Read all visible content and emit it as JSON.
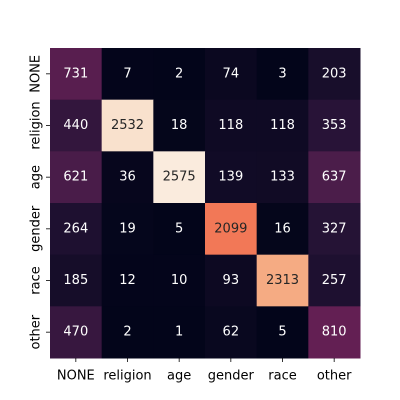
{
  "chart_data": {
    "type": "heatmap",
    "title": "",
    "xlabel": "",
    "ylabel": "",
    "x_categories": [
      "NONE",
      "religion",
      "age",
      "gender",
      "race",
      "other"
    ],
    "y_categories": [
      "NONE",
      "religion",
      "age",
      "gender",
      "race",
      "other"
    ],
    "values": [
      [
        731,
        7,
        2,
        74,
        3,
        203
      ],
      [
        440,
        2532,
        18,
        118,
        118,
        353
      ],
      [
        621,
        36,
        2575,
        139,
        133,
        637
      ],
      [
        264,
        19,
        5,
        2099,
        16,
        327
      ],
      [
        185,
        12,
        10,
        93,
        2313,
        257
      ],
      [
        470,
        2,
        1,
        62,
        5,
        810
      ]
    ],
    "value_range": [
      1,
      2575
    ],
    "colormap": "rocket",
    "colorbar": false,
    "annotations": true,
    "grid": false,
    "legend": "none"
  }
}
